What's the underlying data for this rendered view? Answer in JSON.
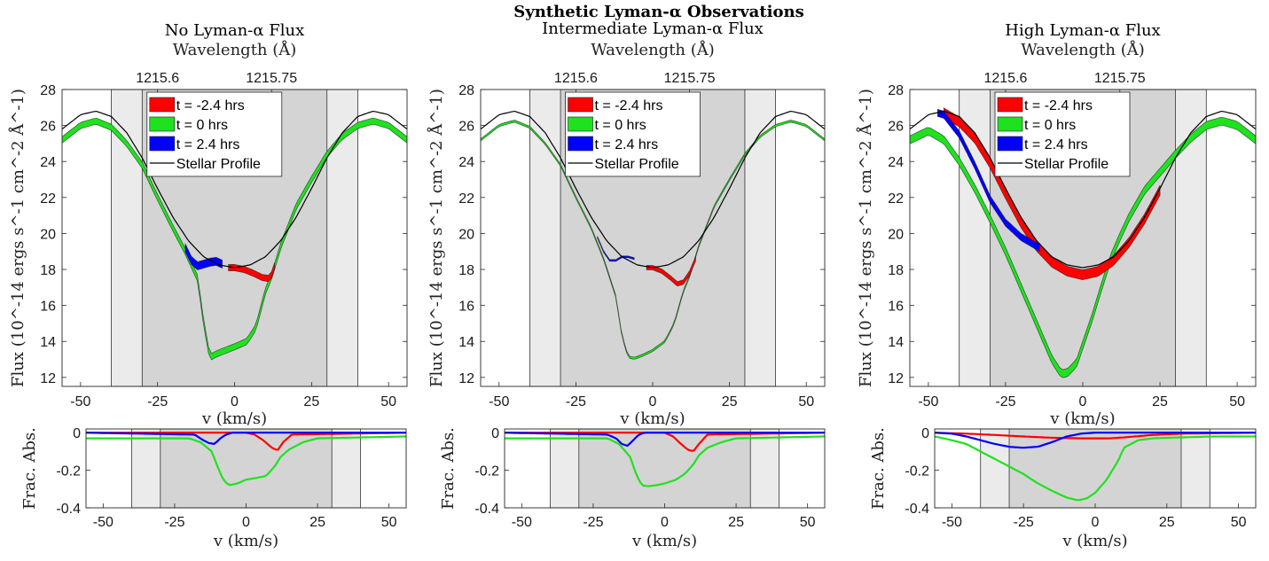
{
  "figure_title": "Synthetic Lyman-α Observations",
  "colors": {
    "red": "#ff0000",
    "green": "#1ee21e",
    "blue": "#0000ff",
    "stellar": "#000000",
    "shade_outer": "#ebebeb",
    "shade_inner": "#d4d4d4"
  },
  "chart_data": [
    {
      "type": "area",
      "title": "No Lyman-α Flux",
      "top_xlabel": "Wavelength (Å)",
      "top_ticks": [
        "1215.6",
        "1215.75"
      ],
      "top_tick_positions_kms": [
        -25,
        12
      ],
      "xlabel": "v (km/s)",
      "ylabel": "Flux (10^-14 ergs s^-1 cm^-2 Å^-1)",
      "xlim": [
        -56,
        56
      ],
      "ylim": [
        11.5,
        28
      ],
      "xticks": [
        "-50",
        "-25",
        "0",
        "25",
        "50"
      ],
      "yticks": [
        "12",
        "14",
        "16",
        "18",
        "20",
        "22",
        "24",
        "26",
        "28"
      ],
      "bands": {
        "outer": [
          -40,
          40
        ],
        "inner": [
          -30,
          30
        ]
      },
      "legend": [
        "t = -2.4 hrs",
        "t = 0 hrs",
        "t = 2.4 hrs",
        "Stellar Profile"
      ],
      "stellar_x": [
        -56,
        -50,
        -45,
        -40,
        -35,
        -30,
        -25,
        -20,
        -15,
        -10,
        -5,
        0,
        5,
        10,
        15,
        20,
        25,
        30,
        35,
        40,
        45,
        50,
        56
      ],
      "stellar_y": [
        25.8,
        26.6,
        26.8,
        26.5,
        25.6,
        24.2,
        22.5,
        20.9,
        19.6,
        18.7,
        18.25,
        18.1,
        18.25,
        18.7,
        19.6,
        20.9,
        22.5,
        24.2,
        25.6,
        26.5,
        26.8,
        26.6,
        25.8
      ],
      "series": [
        {
          "name": "t = -2.4 hrs",
          "x": [
            -2,
            0,
            3,
            6,
            9,
            11,
            12,
            13
          ],
          "y": [
            18.1,
            18.1,
            18.0,
            17.8,
            17.55,
            17.5,
            17.7,
            18.2
          ],
          "width": 0.35
        },
        {
          "name": "t = 0 hrs",
          "x": [
            -56,
            -50,
            -45,
            -40,
            -35,
            -30,
            -25,
            -20,
            -16,
            -12,
            -10,
            -8,
            -6,
            -3,
            0,
            4,
            7,
            10,
            12,
            15,
            20,
            25,
            30,
            35,
            40,
            45,
            50,
            56
          ],
          "y": [
            25.2,
            26.0,
            26.25,
            25.9,
            25.0,
            23.8,
            22.0,
            20.3,
            19.0,
            17.5,
            15.0,
            13.1,
            13.3,
            13.5,
            13.7,
            14.0,
            14.8,
            16.8,
            17.6,
            19.3,
            21.5,
            23.0,
            24.4,
            25.4,
            26.0,
            26.25,
            26.0,
            25.2
          ],
          "width": 0.35
        },
        {
          "name": "t = 2.4 hrs",
          "x": [
            -16,
            -14,
            -12,
            -10,
            -8,
            -6,
            -4
          ],
          "y": [
            19.2,
            18.5,
            18.2,
            18.3,
            18.4,
            18.45,
            18.3
          ],
          "width": 0.45
        }
      ],
      "frac_xlim": [
        -56,
        56
      ],
      "frac_ylim": [
        -0.4,
        0.02
      ],
      "frac_xticks": [
        "-50",
        "-25",
        "0",
        "25",
        "50"
      ],
      "frac_yticks": [
        "0",
        "-0.2",
        "-0.4"
      ],
      "frac_ylabel": "Frac. Abs.",
      "frac_series": [
        {
          "name": "t = -2.4 hrs",
          "x": [
            -56,
            0,
            3,
            6,
            9,
            11,
            13,
            16,
            56
          ],
          "y": [
            0,
            0,
            -0.01,
            -0.04,
            -0.08,
            -0.095,
            -0.05,
            -0.01,
            0
          ]
        },
        {
          "name": "t = 0 hrs",
          "x": [
            -56,
            -20,
            -16,
            -12,
            -10,
            -8,
            -6,
            -3,
            0,
            4,
            7,
            10,
            12,
            15,
            20,
            25,
            56
          ],
          "y": [
            -0.03,
            -0.03,
            -0.05,
            -0.1,
            -0.18,
            -0.25,
            -0.28,
            -0.27,
            -0.25,
            -0.24,
            -0.23,
            -0.18,
            -0.13,
            -0.09,
            -0.05,
            -0.03,
            -0.02
          ]
        },
        {
          "name": "t = 2.4 hrs",
          "x": [
            -56,
            -18,
            -15,
            -13,
            -11,
            -9,
            -7,
            -5,
            56
          ],
          "y": [
            0,
            -0.01,
            -0.04,
            -0.055,
            -0.06,
            -0.03,
            -0.01,
            0,
            0
          ]
        }
      ]
    },
    {
      "type": "area",
      "title": "Intermediate Lyman-α Flux",
      "top_xlabel": "Wavelength (Å)",
      "top_ticks": [
        "1215.6",
        "1215.75"
      ],
      "top_tick_positions_kms": [
        -25,
        12
      ],
      "xlabel": "v (km/s)",
      "ylabel": "Flux (10^-14 ergs s^-1 cm^-2 Å^-1)",
      "xlim": [
        -56,
        56
      ],
      "ylim": [
        11.5,
        28
      ],
      "xticks": [
        "-50",
        "-25",
        "0",
        "25",
        "50"
      ],
      "yticks": [
        "12",
        "14",
        "16",
        "18",
        "20",
        "22",
        "24",
        "26",
        "28"
      ],
      "bands": {
        "outer": [
          -40,
          40
        ],
        "inner": [
          -30,
          30
        ]
      },
      "legend": [
        "t = -2.4 hrs",
        "t = 0 hrs",
        "t = 2.4 hrs",
        "Stellar Profile"
      ],
      "stellar_x": [
        -56,
        -50,
        -45,
        -40,
        -35,
        -30,
        -25,
        -20,
        -15,
        -10,
        -5,
        0,
        5,
        10,
        15,
        20,
        25,
        30,
        35,
        40,
        45,
        50,
        56
      ],
      "stellar_y": [
        25.8,
        26.6,
        26.8,
        26.5,
        25.6,
        24.2,
        22.5,
        20.9,
        19.6,
        18.7,
        18.25,
        18.1,
        18.25,
        18.7,
        19.6,
        20.9,
        22.5,
        24.2,
        25.6,
        26.5,
        26.8,
        26.6,
        25.8
      ],
      "series": [
        {
          "name": "t = -2.4 hrs",
          "x": [
            -2,
            0,
            3,
            6,
            8,
            10,
            12,
            14
          ],
          "y": [
            18.1,
            18.1,
            17.9,
            17.5,
            17.2,
            17.3,
            17.8,
            18.6
          ],
          "width": 0.25
        },
        {
          "name": "t = 0 hrs",
          "x": [
            -56,
            -50,
            -45,
            -40,
            -35,
            -30,
            -25,
            -20,
            -16,
            -12,
            -10,
            -8,
            -6,
            -3,
            0,
            4,
            7,
            10,
            12,
            15,
            20,
            25,
            30,
            35,
            40,
            45,
            50,
            56
          ],
          "y": [
            25.2,
            26.0,
            26.25,
            25.9,
            25.0,
            23.8,
            22.0,
            20.3,
            18.6,
            16.5,
            14.3,
            13.15,
            13.05,
            13.25,
            13.5,
            14.0,
            15.0,
            16.8,
            17.6,
            19.3,
            21.5,
            23.0,
            24.4,
            25.4,
            26.0,
            26.25,
            26.0,
            25.2
          ],
          "width": 0.12
        },
        {
          "name": "t = 2.4 hrs",
          "x": [
            -18,
            -16,
            -14,
            -12,
            -10,
            -8,
            -6
          ],
          "y": [
            19.8,
            19.0,
            18.5,
            18.5,
            18.7,
            18.7,
            18.6
          ],
          "width": 0.1
        }
      ],
      "frac_xlim": [
        -56,
        56
      ],
      "frac_ylim": [
        -0.4,
        0.02
      ],
      "frac_xticks": [
        "-50",
        "-25",
        "0",
        "25",
        "50"
      ],
      "frac_yticks": [
        "0",
        "-0.2",
        "-0.4"
      ],
      "frac_ylabel": "Frac. Abs.",
      "frac_series": [
        {
          "name": "t = -2.4 hrs",
          "x": [
            -56,
            0,
            3,
            5,
            8,
            10,
            12,
            15,
            56
          ],
          "y": [
            0,
            0,
            -0.02,
            -0.05,
            -0.09,
            -0.1,
            -0.06,
            -0.01,
            0
          ]
        },
        {
          "name": "t = 0 hrs",
          "x": [
            -56,
            -20,
            -16,
            -12,
            -10,
            -8,
            -6,
            -3,
            0,
            4,
            7,
            10,
            12,
            15,
            20,
            25,
            56
          ],
          "y": [
            -0.03,
            -0.03,
            -0.06,
            -0.13,
            -0.22,
            -0.28,
            -0.285,
            -0.28,
            -0.27,
            -0.25,
            -0.22,
            -0.17,
            -0.12,
            -0.08,
            -0.05,
            -0.03,
            -0.02
          ]
        },
        {
          "name": "t = 2.4 hrs",
          "x": [
            -56,
            -20,
            -17,
            -15,
            -13,
            -11,
            -9,
            -7,
            56
          ],
          "y": [
            0,
            -0.01,
            -0.03,
            -0.06,
            -0.07,
            -0.04,
            -0.01,
            0,
            0
          ]
        }
      ]
    },
    {
      "type": "area",
      "title": "High Lyman-α Flux",
      "top_xlabel": "Wavelength (Å)",
      "top_ticks": [
        "1215.6",
        "1215.75"
      ],
      "top_tick_positions_kms": [
        -25,
        12
      ],
      "xlabel": "v (km/s)",
      "ylabel": "Flux (10^-14 ergs s^-1 cm^-2 Å^-1)",
      "xlim": [
        -56,
        56
      ],
      "ylim": [
        11.5,
        28
      ],
      "xticks": [
        "-50",
        "-25",
        "0",
        "25",
        "50"
      ],
      "yticks": [
        "12",
        "14",
        "16",
        "18",
        "20",
        "22",
        "24",
        "26",
        "28"
      ],
      "bands": {
        "outer": [
          -40,
          40
        ],
        "inner": [
          -30,
          30
        ]
      },
      "legend": [
        "t = -2.4 hrs",
        "t = 0 hrs",
        "t = 2.4 hrs",
        "Stellar Profile"
      ],
      "stellar_x": [
        -56,
        -50,
        -45,
        -40,
        -35,
        -30,
        -25,
        -20,
        -15,
        -10,
        -5,
        0,
        5,
        10,
        15,
        20,
        25,
        30,
        35,
        40,
        45,
        50,
        56
      ],
      "stellar_y": [
        25.8,
        26.6,
        26.8,
        26.5,
        25.6,
        24.2,
        22.5,
        20.9,
        19.6,
        18.7,
        18.25,
        18.1,
        18.25,
        18.7,
        19.6,
        20.9,
        22.5,
        24.2,
        25.6,
        26.5,
        26.8,
        26.6,
        25.8
      ],
      "series": [
        {
          "name": "t = -2.4 hrs",
          "x": [
            -45,
            -40,
            -35,
            -30,
            -25,
            -20,
            -15,
            -10,
            -5,
            0,
            5,
            10,
            15,
            20,
            25
          ],
          "y": [
            26.7,
            26.2,
            25.3,
            23.9,
            22.2,
            20.6,
            19.3,
            18.4,
            17.9,
            17.7,
            17.9,
            18.5,
            19.5,
            20.8,
            22.4
          ],
          "width": 0.55
        },
        {
          "name": "t = 0 hrs",
          "x": [
            -56,
            -50,
            -45,
            -40,
            -35,
            -30,
            -25,
            -20,
            -15,
            -10,
            -7,
            -5,
            -2,
            0,
            3,
            6,
            9,
            12,
            15,
            20,
            25,
            30,
            35,
            40,
            45,
            50,
            56
          ],
          "y": [
            25.2,
            25.7,
            25.2,
            24.0,
            22.5,
            20.8,
            19.0,
            17.0,
            15.0,
            13.0,
            12.2,
            12.25,
            12.8,
            13.8,
            15.3,
            17.0,
            18.6,
            19.8,
            20.9,
            22.4,
            23.4,
            24.4,
            25.3,
            26.0,
            26.25,
            26.0,
            25.2
          ],
          "width": 0.45
        },
        {
          "name": "t = 2.4 hrs",
          "x": [
            -47,
            -45,
            -40,
            -35,
            -30,
            -25,
            -20,
            -18,
            -16,
            -14
          ],
          "y": [
            26.7,
            26.6,
            25.5,
            23.8,
            21.9,
            20.6,
            19.8,
            19.6,
            19.4,
            19.2
          ],
          "width": 0.4
        }
      ],
      "frac_xlim": [
        -56,
        56
      ],
      "frac_ylim": [
        -0.4,
        0.02
      ],
      "frac_xticks": [
        "-50",
        "-25",
        "0",
        "25",
        "50"
      ],
      "frac_yticks": [
        "0",
        "-0.2",
        "-0.4"
      ],
      "frac_ylabel": "Frac. Abs.",
      "frac_series": [
        {
          "name": "t = -2.4 hrs",
          "x": [
            -56,
            -45,
            -35,
            -25,
            -15,
            -5,
            0,
            5,
            10,
            20,
            30,
            56
          ],
          "y": [
            0,
            -0.005,
            -0.012,
            -0.02,
            -0.027,
            -0.03,
            -0.03,
            -0.03,
            -0.025,
            -0.012,
            -0.005,
            0
          ]
        },
        {
          "name": "t = 0 hrs",
          "x": [
            -56,
            -50,
            -45,
            -40,
            -35,
            -30,
            -25,
            -20,
            -15,
            -10,
            -6,
            -3,
            0,
            4,
            8,
            10,
            15,
            20,
            30,
            40,
            56
          ],
          "y": [
            -0.02,
            -0.04,
            -0.06,
            -0.1,
            -0.14,
            -0.18,
            -0.22,
            -0.27,
            -0.31,
            -0.345,
            -0.36,
            -0.35,
            -0.32,
            -0.25,
            -0.15,
            -0.08,
            -0.04,
            -0.03,
            -0.025,
            -0.02,
            -0.02
          ]
        },
        {
          "name": "t = 2.4 hrs",
          "x": [
            -56,
            -50,
            -45,
            -40,
            -35,
            -30,
            -25,
            -20,
            -15,
            -10,
            -5,
            0,
            56
          ],
          "y": [
            0,
            -0.005,
            -0.02,
            -0.04,
            -0.06,
            -0.075,
            -0.08,
            -0.075,
            -0.05,
            -0.02,
            -0.005,
            0,
            0
          ]
        }
      ]
    }
  ]
}
